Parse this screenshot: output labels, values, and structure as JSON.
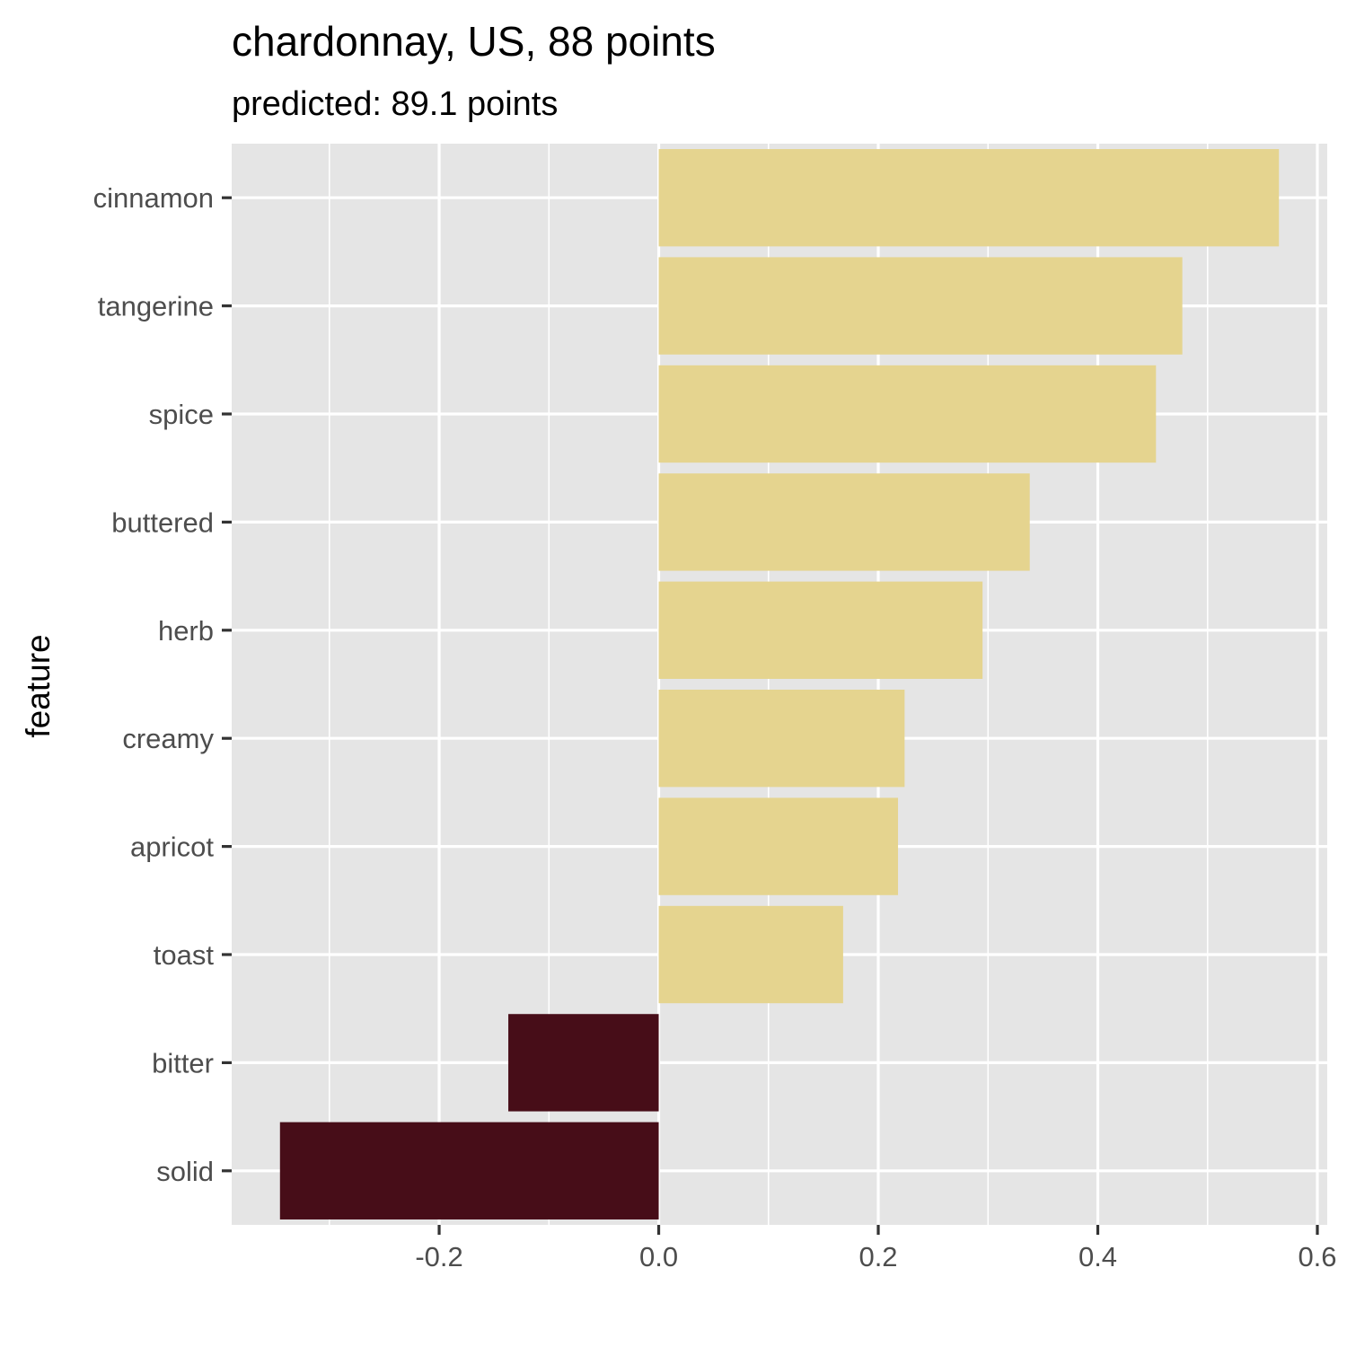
{
  "chart_data": {
    "type": "bar",
    "orientation": "horizontal",
    "title": "chardonnay, US, 88 points",
    "subtitle": "predicted: 89.1 points",
    "xlabel": "",
    "ylabel": "feature",
    "categories": [
      "cinnamon",
      "tangerine",
      "spice",
      "buttered",
      "herb",
      "creamy",
      "apricot",
      "toast",
      "bitter",
      "solid"
    ],
    "values": [
      0.565,
      0.477,
      0.453,
      0.338,
      0.295,
      0.224,
      0.218,
      0.168,
      -0.137,
      -0.345
    ],
    "xlim": [
      -0.389,
      0.609
    ],
    "xticks": [
      -0.2,
      0.0,
      0.2,
      0.4,
      0.6
    ],
    "xtick_labels": [
      "-0.2",
      "0.0",
      "0.2",
      "0.4",
      "0.6"
    ],
    "grid": true,
    "legend": "none",
    "colors": {
      "positive": "#e5d48f",
      "negative": "#470d18",
      "panel": "#e5e5e5",
      "grid": "#ffffff",
      "tick_text": "#4d4d4d",
      "tick_mark": "#333333"
    }
  }
}
